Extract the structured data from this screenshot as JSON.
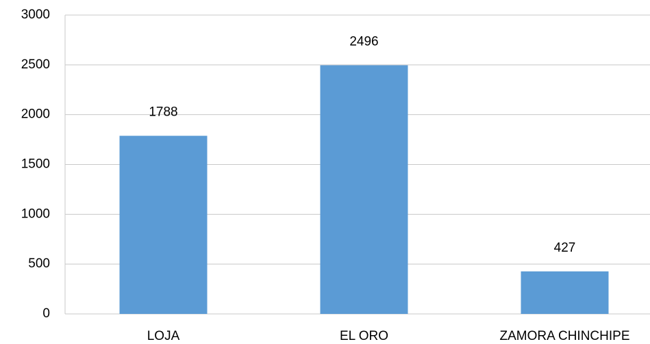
{
  "chart_data": {
    "type": "bar",
    "categories": [
      "LOJA",
      "EL ORO",
      "ZAMORA CHINCHIPE"
    ],
    "values": [
      1788,
      2496,
      427
    ],
    "color": "#5b9bd5",
    "ylim": [
      0,
      3000
    ],
    "yticks": [
      0,
      500,
      1000,
      1500,
      2000,
      2500,
      3000
    ],
    "grid": true
  }
}
